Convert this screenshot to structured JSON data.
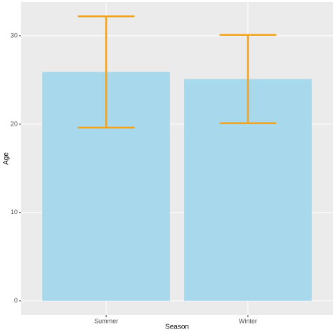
{
  "chart_data": {
    "type": "bar",
    "x_label": "Season",
    "y_label": "Age",
    "categories": [
      "Summer",
      "Winter"
    ],
    "values": [
      25.9,
      25.1
    ],
    "errors": [
      6.3,
      5.0
    ],
    "color": "#a8d8ec",
    "error_color": "#f5a21b",
    "ylim": [
      -1.61,
      33.81
    ],
    "yticks": [
      0,
      10,
      20,
      30
    ],
    "grid": true
  }
}
